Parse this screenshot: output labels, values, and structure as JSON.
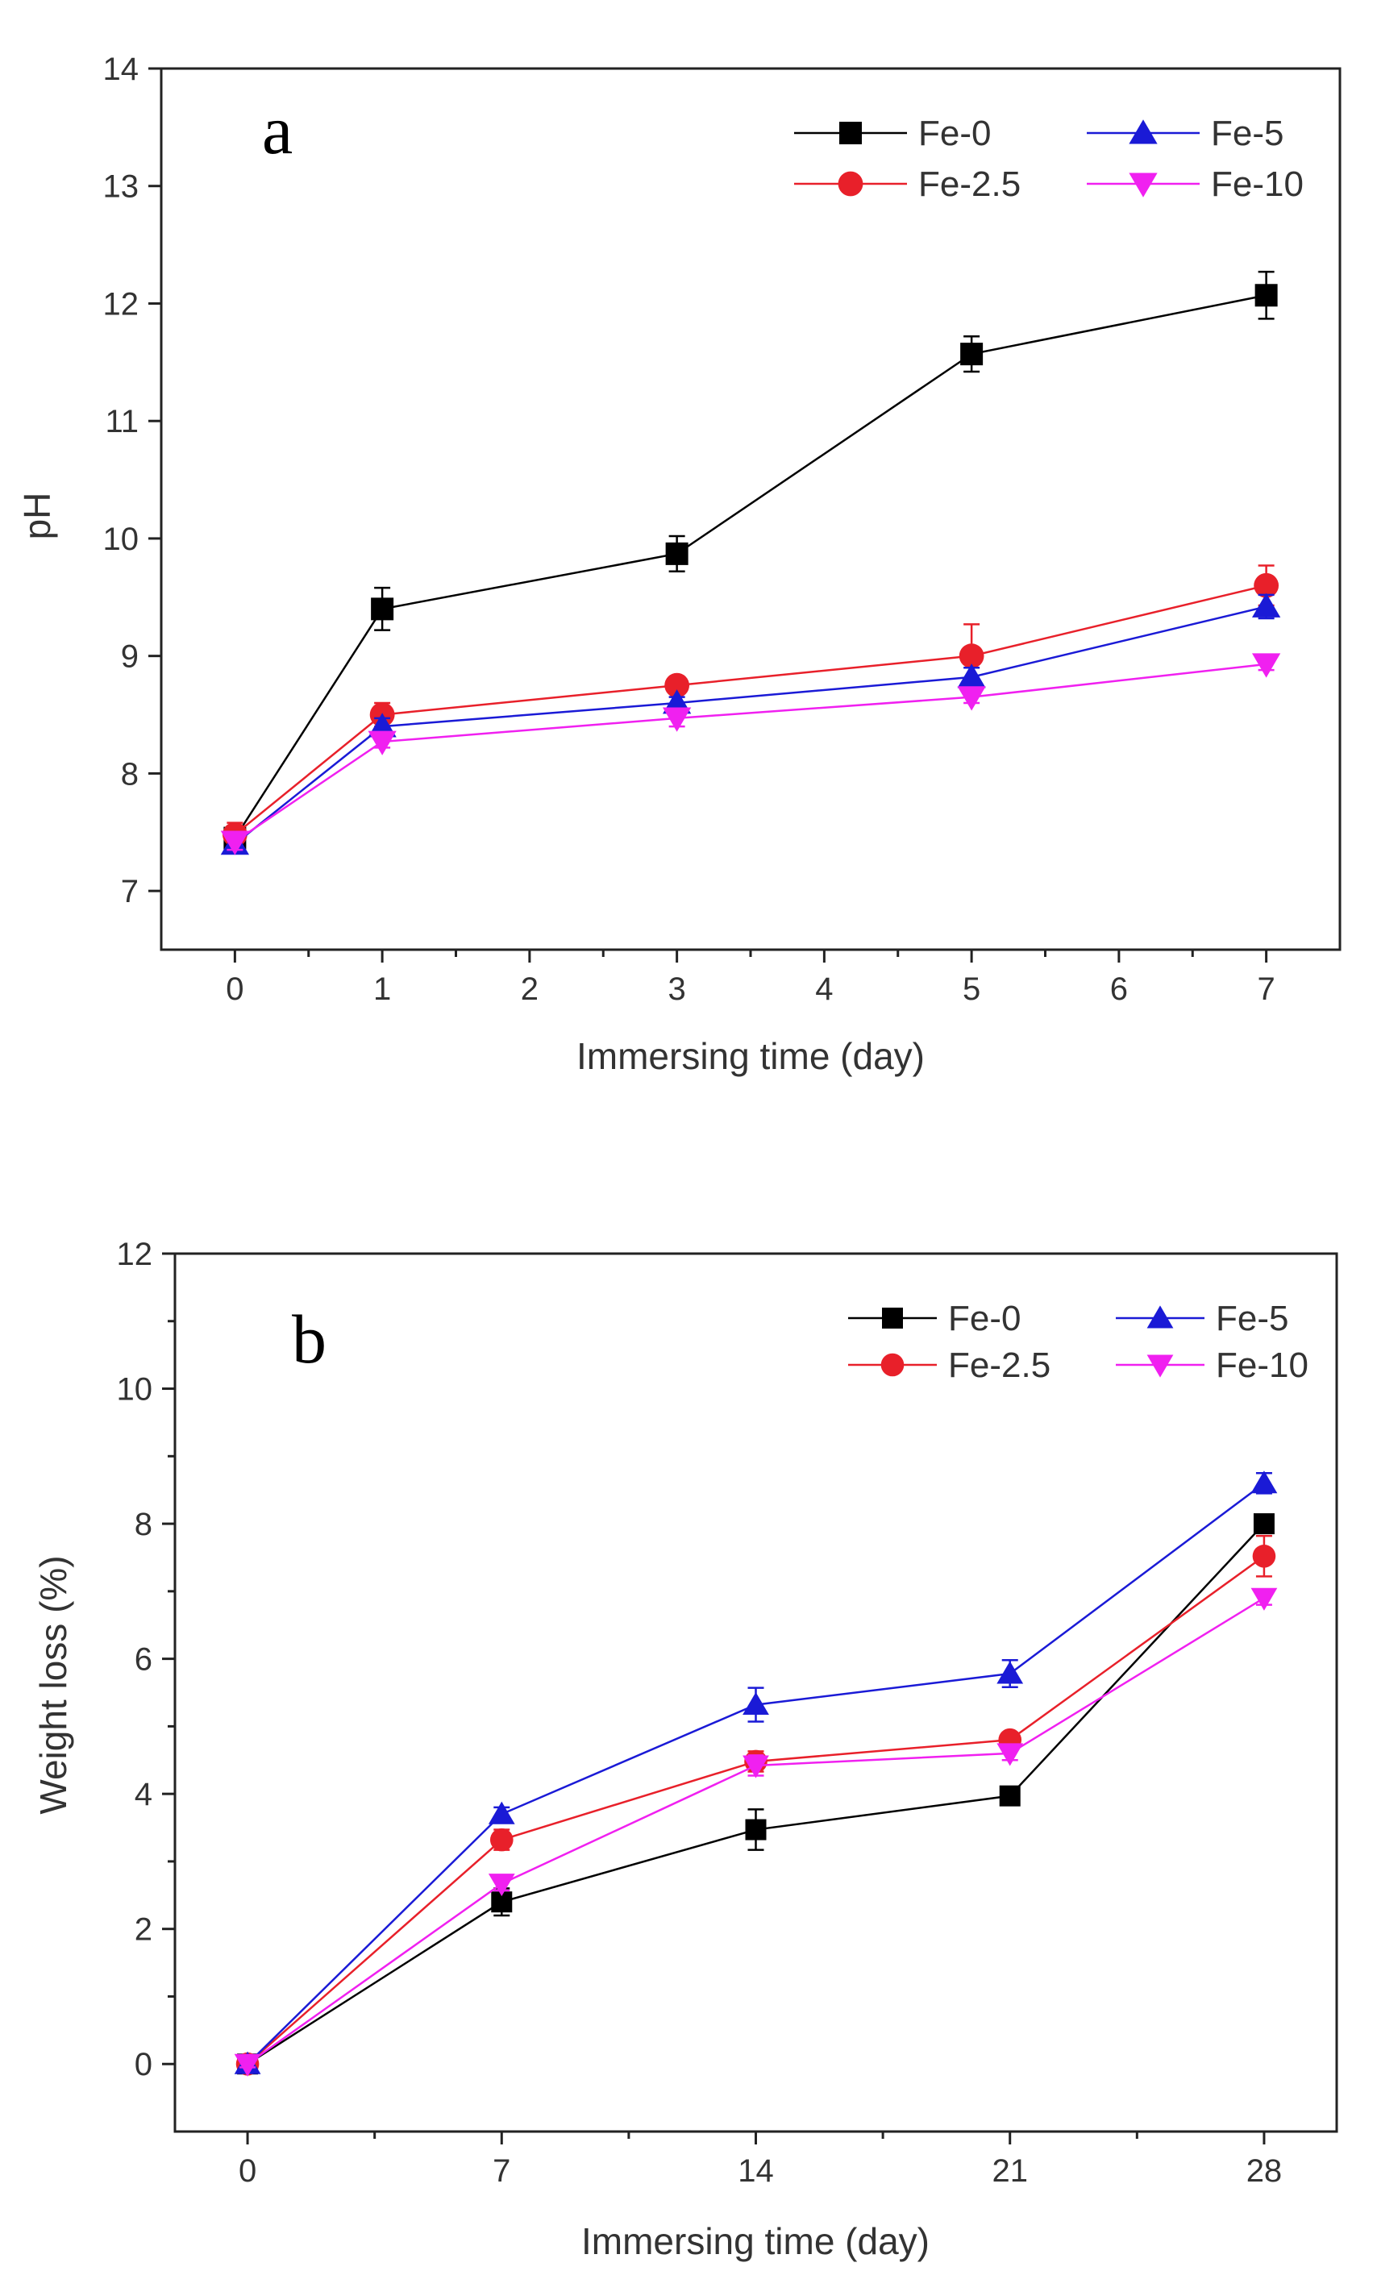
{
  "chart_data": [
    {
      "type": "line",
      "panel_label": "a",
      "title": "",
      "xlabel": "Immersing time (day)",
      "ylabel": "pH",
      "xlim": [
        -0.5,
        7.5
      ],
      "ylim": [
        6.5,
        14
      ],
      "xticks": [
        0,
        1,
        2,
        3,
        4,
        5,
        6,
        7
      ],
      "xtick_labels": [
        "0",
        "1",
        "2",
        "3",
        "4",
        "5",
        "6",
        "7"
      ],
      "yticks": [
        7,
        8,
        9,
        10,
        11,
        12,
        13,
        14
      ],
      "ytick_labels": [
        "7",
        "8",
        "9",
        "10",
        "11",
        "12",
        "13",
        "14"
      ],
      "x": [
        0,
        1,
        3,
        5,
        7
      ],
      "legend_position": "top-right",
      "series": [
        {
          "name": "Fe-0",
          "color": "#000000",
          "marker": "square",
          "values": [
            7.45,
            9.4,
            9.87,
            11.57,
            12.07
          ],
          "errors": [
            0.08,
            0.18,
            0.15,
            0.15,
            0.2
          ]
        },
        {
          "name": "Fe-2.5",
          "color": "#e8202a",
          "marker": "circle",
          "values": [
            7.48,
            8.5,
            8.75,
            9.0,
            9.6
          ],
          "errors": [
            0.1,
            0.1,
            0.05,
            0.27,
            0.17
          ]
        },
        {
          "name": "Fe-5",
          "color": "#1a1ad6",
          "marker": "triangle-up",
          "values": [
            7.4,
            8.4,
            8.6,
            8.82,
            9.42
          ],
          "errors": [
            0.07,
            0.07,
            0.05,
            0.08,
            0.1
          ]
        },
        {
          "name": "Fe-10",
          "color": "#f020f0",
          "marker": "triangle-down",
          "values": [
            7.42,
            8.27,
            8.47,
            8.65,
            8.93
          ],
          "errors": [
            0.07,
            0.05,
            0.07,
            0.05,
            0.05
          ]
        }
      ]
    },
    {
      "type": "line",
      "panel_label": "b",
      "title": "",
      "xlabel": "Immersing time (day)",
      "ylabel": "Weight loss (%)",
      "xlim": [
        -2,
        30
      ],
      "ylim": [
        -1,
        12
      ],
      "xticks": [
        0,
        7,
        14,
        21,
        28
      ],
      "xtick_labels": [
        "0",
        "7",
        "14",
        "21",
        "28"
      ],
      "yticks": [
        0,
        2,
        4,
        6,
        8,
        10,
        12
      ],
      "ytick_labels": [
        "0",
        "2",
        "4",
        "6",
        "8",
        "10",
        "12"
      ],
      "x": [
        0,
        7,
        14,
        21,
        28
      ],
      "legend_position": "top-right",
      "series": [
        {
          "name": "Fe-0",
          "color": "#000000",
          "marker": "square",
          "values": [
            0,
            2.4,
            3.47,
            3.97,
            8.0
          ],
          "errors": [
            0.05,
            0.2,
            0.3,
            0.08,
            0.08
          ]
        },
        {
          "name": "Fe-2.5",
          "color": "#e8202a",
          "marker": "circle",
          "values": [
            0,
            3.32,
            4.48,
            4.8,
            7.52
          ],
          "errors": [
            0.05,
            0.15,
            0.15,
            0.1,
            0.3
          ]
        },
        {
          "name": "Fe-5",
          "color": "#1a1ad6",
          "marker": "triangle-up",
          "values": [
            0,
            3.7,
            5.32,
            5.78,
            8.6
          ],
          "errors": [
            0.05,
            0.1,
            0.25,
            0.2,
            0.15
          ]
        },
        {
          "name": "Fe-10",
          "color": "#f020f0",
          "marker": "triangle-down",
          "values": [
            0,
            2.67,
            4.42,
            4.6,
            6.9
          ],
          "errors": [
            0.05,
            0.1,
            0.15,
            0.1,
            0.1
          ]
        }
      ]
    }
  ]
}
